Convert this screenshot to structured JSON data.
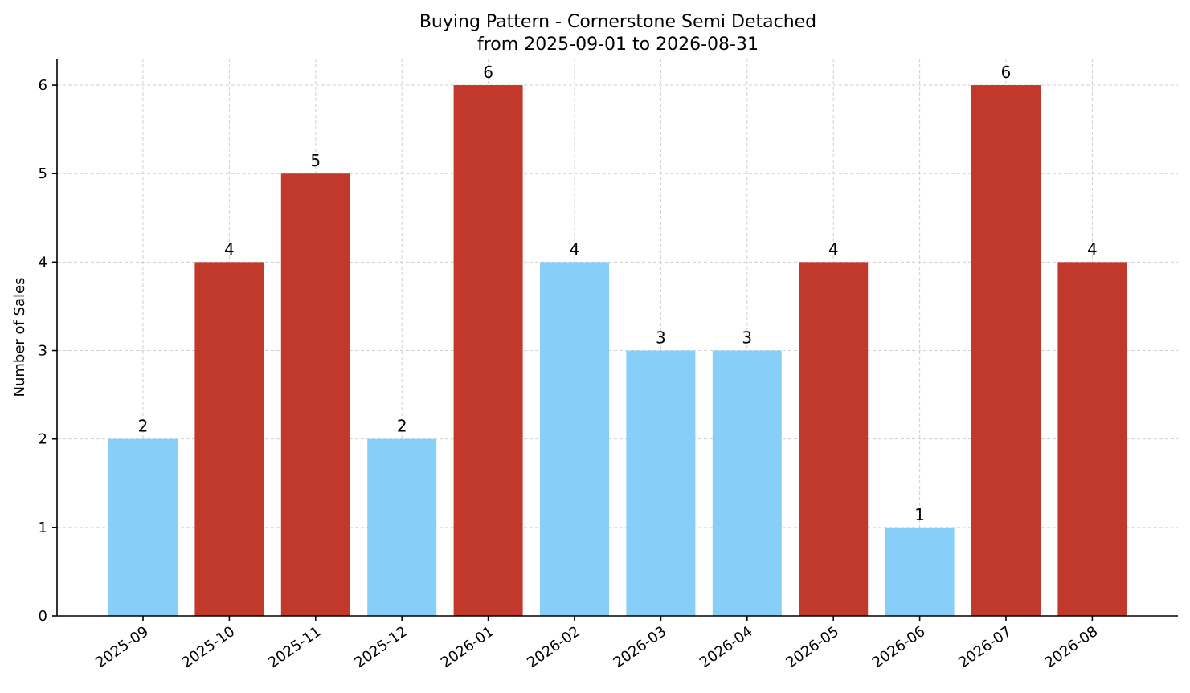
{
  "chart_data": {
    "type": "bar",
    "title": "Buying Pattern - Cornerstone Semi Detached",
    "subtitle": "from 2025-09-01 to 2026-08-31",
    "xlabel": "",
    "ylabel": "Number of Sales",
    "categories": [
      "2025-09",
      "2025-10",
      "2025-11",
      "2025-12",
      "2026-01",
      "2026-02",
      "2026-03",
      "2026-04",
      "2026-05",
      "2026-06",
      "2026-07",
      "2026-08"
    ],
    "values": [
      2,
      4,
      5,
      2,
      6,
      4,
      3,
      3,
      4,
      1,
      6,
      4
    ],
    "highlighted": [
      false,
      true,
      true,
      false,
      true,
      false,
      false,
      false,
      true,
      false,
      true,
      true
    ],
    "colors": {
      "normal": "#87CEF8",
      "highlight": "#C0392B"
    },
    "ylim": [
      0,
      6.3
    ],
    "yticks": [
      0,
      1,
      2,
      3,
      4,
      5,
      6
    ],
    "grid": true,
    "data_labels": true
  }
}
